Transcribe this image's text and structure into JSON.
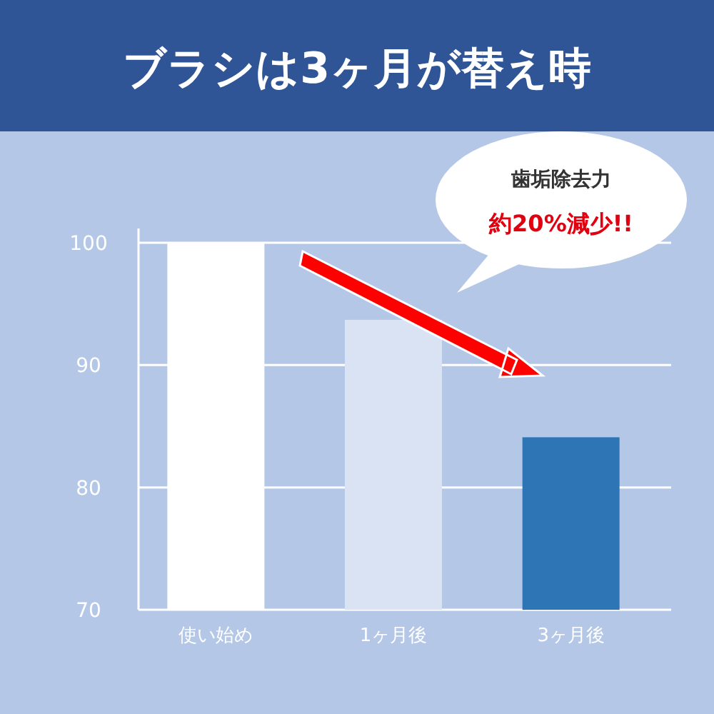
{
  "chart_data": {
    "type": "bar",
    "title": "ブラシは3ヶ月が替え時",
    "categories": [
      "使い始め",
      "1ヶ月後",
      "3ヶ月後"
    ],
    "values": [
      100,
      93.7,
      84.1
    ],
    "colors": [
      "#ffffff",
      "#dae3f3",
      "#2e75b6"
    ],
    "ylim": [
      70,
      100
    ],
    "yticks": [
      70,
      80,
      90,
      100
    ],
    "grid": "y",
    "annotations": [
      "歯垢除去力",
      "約20%減少!!"
    ]
  }
}
